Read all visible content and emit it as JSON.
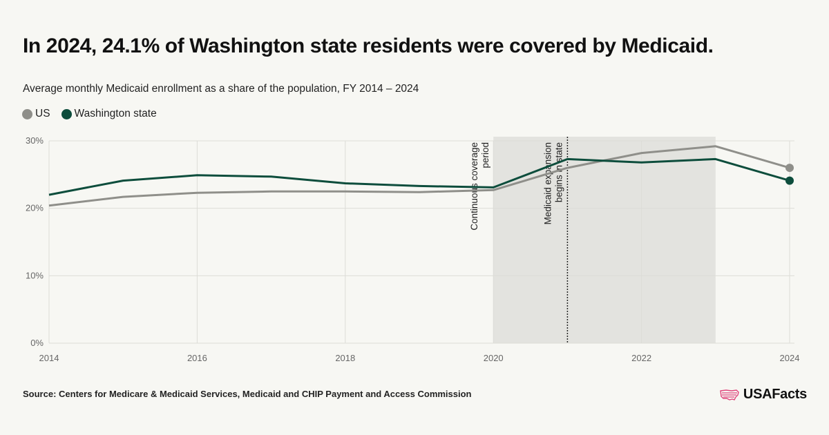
{
  "title": "In 2024, 24.1% of Washington state residents were covered by Medicaid.",
  "colors": {
    "background": "#f7f7f3",
    "us": "#8f8f8a",
    "washington": "#0d4d3c",
    "shade": "#e3e3df",
    "grid": "#dcdcd7",
    "logo_accent": "#e0457b"
  },
  "chart_data": {
    "type": "line",
    "title": "In 2024, 24.1% of Washington state residents were covered by Medicaid.",
    "subtitle": "Average monthly Medicaid enrollment as a share of the population, FY 2014 – 2024",
    "xlabel": "",
    "ylabel": "",
    "x": [
      2014,
      2015,
      2016,
      2017,
      2018,
      2019,
      2020,
      2021,
      2022,
      2023,
      2024
    ],
    "xlim": [
      2014,
      2024
    ],
    "ylim": [
      0,
      30
    ],
    "x_ticks": [
      "2014",
      "2016",
      "2018",
      "2020",
      "2022",
      "2024"
    ],
    "y_ticks": [
      "0%",
      "10%",
      "20%",
      "30%"
    ],
    "grid": true,
    "legend_position": "top-left",
    "series": [
      {
        "name": "US",
        "color": "#8f8f8a",
        "values": [
          20.4,
          21.7,
          22.3,
          22.5,
          22.5,
          22.4,
          22.7,
          26.0,
          28.2,
          29.2,
          26.0
        ]
      },
      {
        "name": "Washington state",
        "color": "#0d4d3c",
        "values": [
          22.0,
          24.1,
          24.9,
          24.7,
          23.7,
          23.3,
          23.1,
          27.3,
          26.8,
          27.3,
          24.1
        ]
      }
    ],
    "shaded_region": {
      "x_start": 2020,
      "x_end": 2023,
      "label": [
        "Continuous coverage",
        "period"
      ]
    },
    "reference_line": {
      "x": 2021,
      "label": [
        "Medicaid expansion",
        "begins in state"
      ]
    },
    "source": "Source: Centers for Medicare & Medicaid Services, Medicaid and CHIP Payment and Access Commission"
  },
  "brand": {
    "name": "USAFacts"
  }
}
